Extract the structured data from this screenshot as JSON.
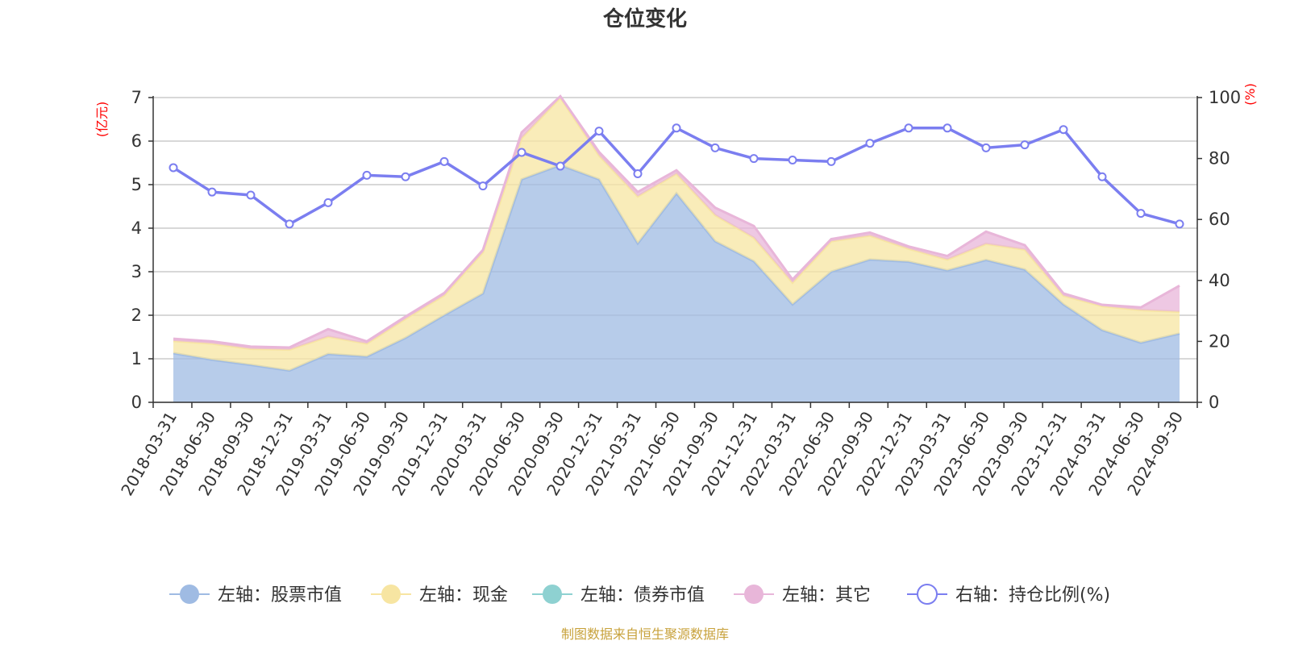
{
  "chart_data": {
    "type": "area",
    "title": "仓位变化",
    "left_axis_unit": "(亿元)",
    "right_axis_unit": "(%)",
    "categories": [
      "2018-03-31",
      "2018-06-30",
      "2018-09-30",
      "2018-12-31",
      "2019-03-31",
      "2019-06-30",
      "2019-09-30",
      "2019-12-31",
      "2020-03-31",
      "2020-06-30",
      "2020-09-30",
      "2020-12-31",
      "2021-03-31",
      "2021-06-30",
      "2021-09-30",
      "2021-12-31",
      "2022-03-31",
      "2022-06-30",
      "2022-09-30",
      "2022-12-31",
      "2023-03-31",
      "2023-06-30",
      "2023-09-30",
      "2023-12-31",
      "2024-03-31",
      "2024-06-30",
      "2024-09-30"
    ],
    "y_left": {
      "min": 0,
      "max": 7,
      "ticks": [
        "0",
        "1",
        "2",
        "3",
        "4",
        "5",
        "6",
        "7"
      ]
    },
    "y_right": {
      "min": 0,
      "max": 100,
      "ticks": [
        "0",
        "20",
        "40",
        "60",
        "80",
        "100"
      ]
    },
    "grid": true,
    "legend_position": "bottom",
    "series": [
      {
        "name": "左轴：股票市值",
        "axis": "left",
        "stacked": true,
        "color": "#9fbbe3",
        "values": [
          1.13,
          0.98,
          0.86,
          0.73,
          1.11,
          1.05,
          1.48,
          2.0,
          2.5,
          5.12,
          5.45,
          5.12,
          3.65,
          4.8,
          3.7,
          3.24,
          2.25,
          3.0,
          3.28,
          3.23,
          3.03,
          3.27,
          3.05,
          2.25,
          1.66,
          1.37,
          1.58
        ]
      },
      {
        "name": "左轴：现金",
        "axis": "left",
        "stacked": true,
        "color": "#f7e5a2",
        "values": [
          0.28,
          0.37,
          0.37,
          0.48,
          0.4,
          0.3,
          0.44,
          0.46,
          0.95,
          0.95,
          1.55,
          0.55,
          1.08,
          0.45,
          0.6,
          0.54,
          0.5,
          0.7,
          0.55,
          0.3,
          0.25,
          0.37,
          0.46,
          0.2,
          0.55,
          0.75,
          0.5
        ]
      },
      {
        "name": "左轴：债券市值",
        "axis": "left",
        "stacked": true,
        "color": "#8ed1d1",
        "values": [
          0,
          0,
          0,
          0,
          0,
          0,
          0,
          0,
          0,
          0,
          0,
          0,
          0,
          0,
          0,
          0,
          0,
          0,
          0,
          0,
          0,
          0,
          0,
          0,
          0,
          0,
          0
        ]
      },
      {
        "name": "左轴：其它",
        "axis": "left",
        "stacked": true,
        "color": "#e8b6d9",
        "values": [
          0.05,
          0.05,
          0.05,
          0.05,
          0.17,
          0.05,
          0.05,
          0.05,
          0.05,
          0.13,
          0.03,
          0.08,
          0.1,
          0.08,
          0.17,
          0.27,
          0.07,
          0.05,
          0.07,
          0.05,
          0.08,
          0.28,
          0.1,
          0.05,
          0.03,
          0.06,
          0.6
        ]
      },
      {
        "name": "右轴：持仓比例(%)",
        "axis": "right",
        "stacked": false,
        "color": "#7b7ef0",
        "values": [
          77,
          69,
          68,
          58.5,
          65.5,
          74.5,
          74,
          79,
          71,
          82,
          77.5,
          89,
          75,
          90,
          83.5,
          80,
          79.5,
          79,
          85,
          90,
          90,
          83.5,
          84.5,
          89.5,
          74,
          62,
          58.5
        ]
      }
    ],
    "footer": "制图数据来自恒生聚源数据库"
  }
}
